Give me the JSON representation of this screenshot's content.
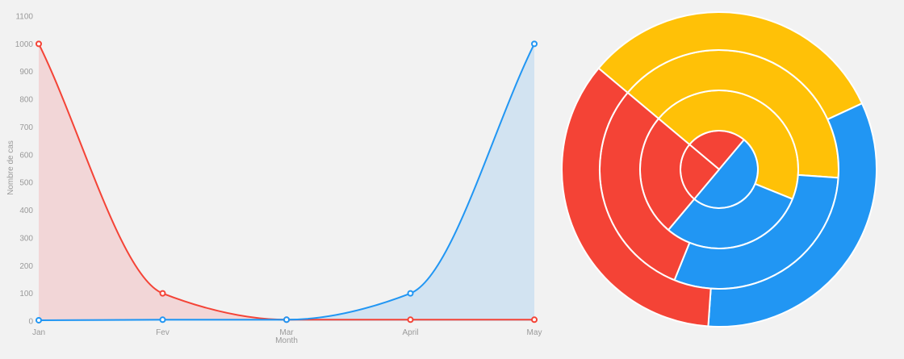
{
  "chart_data": [
    {
      "type": "line",
      "area": true,
      "smooth": true,
      "title": "",
      "xlabel": "Month",
      "ylabel": "Nombre de cas",
      "categories": [
        "Jan",
        "Fev",
        "Mar",
        "April",
        "May"
      ],
      "ylim": [
        0,
        1100
      ],
      "yticks": [
        0,
        100,
        200,
        300,
        400,
        500,
        600,
        700,
        800,
        900,
        1000,
        1100
      ],
      "grid": false,
      "legend": "none",
      "series": [
        {
          "values": [
            1000,
            100,
            5,
            5,
            5
          ],
          "color": "#f44336",
          "fill": "#f2d6d7"
        },
        {
          "values": [
            3,
            5,
            5,
            100,
            1000
          ],
          "color": "#2196f3",
          "fill": "#d2e3f1"
        }
      ]
    },
    {
      "type": "pie",
      "variant": "multi-ring",
      "title": "",
      "legend": "none",
      "rings": [
        {
          "values": [
            1,
            2,
            1
          ],
          "colors": [
            "#f44336",
            "#2196f3",
            "#f44336"
          ]
        },
        {
          "values": [
            4.5,
            3,
            2.5
          ],
          "colors": [
            "#ffc107",
            "#2196f3",
            "#f44336"
          ]
        },
        {
          "values": [
            4,
            3,
            3
          ],
          "colors": [
            "#ffc107",
            "#2196f3",
            "#f44336"
          ]
        },
        {
          "values": [
            3.2,
            3.3,
            3.5
          ],
          "colors": [
            "#ffc107",
            "#2196f3",
            "#f44336"
          ]
        }
      ]
    }
  ]
}
